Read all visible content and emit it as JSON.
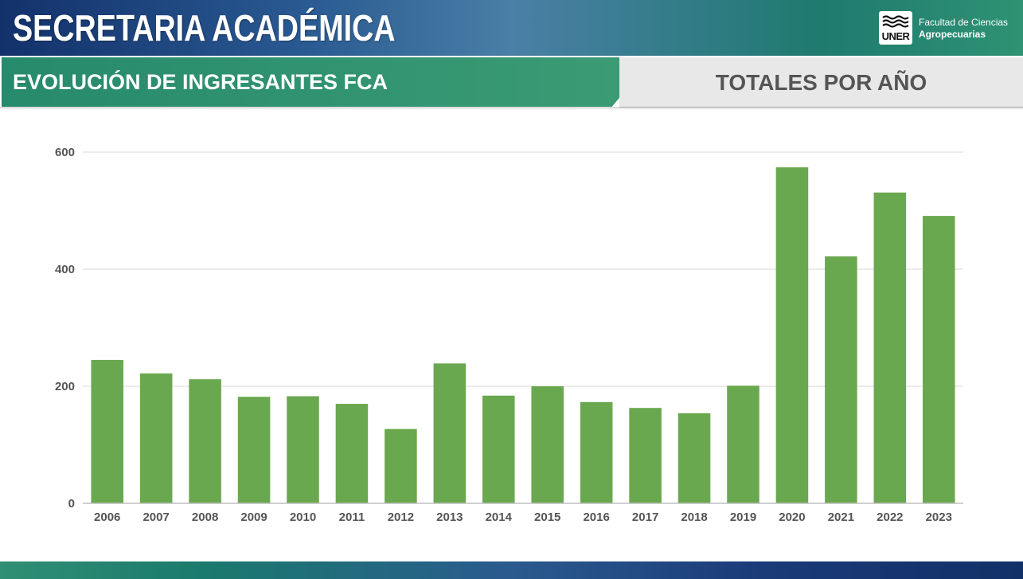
{
  "header": {
    "title": "SECRETARIA ACADÉMICA",
    "logo_text": "UNER",
    "faculty_line1": "Facultad de Ciencias",
    "faculty_line2": "Agropecuarias"
  },
  "subtitle": {
    "left": "EVOLUCIÓN DE INGRESANTES FCA",
    "right": "TOTALES POR AÑO"
  },
  "colors": {
    "bar": "#6aa84f",
    "grid": "#d9d9d9",
    "axis_text": "#555555"
  },
  "chart_data": {
    "type": "bar",
    "title": "",
    "xlabel": "",
    "ylabel": "",
    "categories": [
      "2006",
      "2007",
      "2008",
      "2009",
      "2010",
      "2011",
      "2012",
      "2013",
      "2014",
      "2015",
      "2016",
      "2017",
      "2018",
      "2019",
      "2020",
      "2021",
      "2022",
      "2023"
    ],
    "values": [
      245,
      222,
      212,
      182,
      183,
      170,
      127,
      239,
      184,
      200,
      173,
      163,
      154,
      201,
      574,
      422,
      531,
      491
    ],
    "ylim": [
      0,
      600
    ],
    "yticks": [
      0,
      200,
      400,
      600
    ],
    "grid": true,
    "legend": "none"
  }
}
